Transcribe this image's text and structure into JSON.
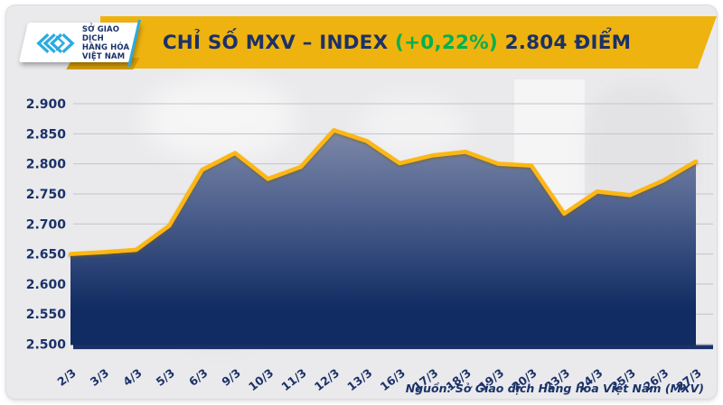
{
  "header": {
    "title_main": "CHỈ SỐ MXV – INDEX ",
    "title_change": "(+0,22%)",
    "title_value": " 2.804 ĐIỂM",
    "bar_color": "#efb30f",
    "title_color": "#1b3168",
    "change_color": "#00b050"
  },
  "logo": {
    "lines": [
      "SỞ GIAO DỊCH",
      "HÀNG HÓA",
      "VIỆT NAM"
    ],
    "trademark": "™",
    "icon_color": "#29abe2"
  },
  "chart_data": {
    "type": "area",
    "title": "Chỉ số MXV – INDEX",
    "x": [
      "2/3",
      "3/3",
      "4/3",
      "5/3",
      "6/3",
      "9/3",
      "10/3",
      "11/3",
      "12/3",
      "13/3",
      "16/3",
      "17/3",
      "18/3",
      "19/3",
      "20/3",
      "23/3",
      "24/3",
      "25/3",
      "26/3",
      "27/3"
    ],
    "values": [
      2650,
      2653,
      2657,
      2697,
      2790,
      2818,
      2775,
      2795,
      2856,
      2838,
      2801,
      2814,
      2820,
      2800,
      2797,
      2717,
      2754,
      2748,
      2772,
      2804
    ],
    "y_ticks": [
      "2.900",
      "2.850",
      "2.800",
      "2.750",
      "2.700",
      "2.650",
      "2.600",
      "2.550",
      "2.500"
    ],
    "ylim": [
      2500,
      2900
    ],
    "grid": true,
    "legend": "none",
    "line_color": "#fcb712",
    "area_top_color": "#8d96b0",
    "area_mid_color": "#4c5f8d",
    "area_bottom_color": "#102c62",
    "axis_text_color": "#1b3168",
    "grid_color": "#d2d2d6",
    "baseline_color": "#1b3168"
  },
  "footer": {
    "source": "Nguồn: Sở Giao dịch Hàng hóa Việt Nam (MXV)"
  }
}
